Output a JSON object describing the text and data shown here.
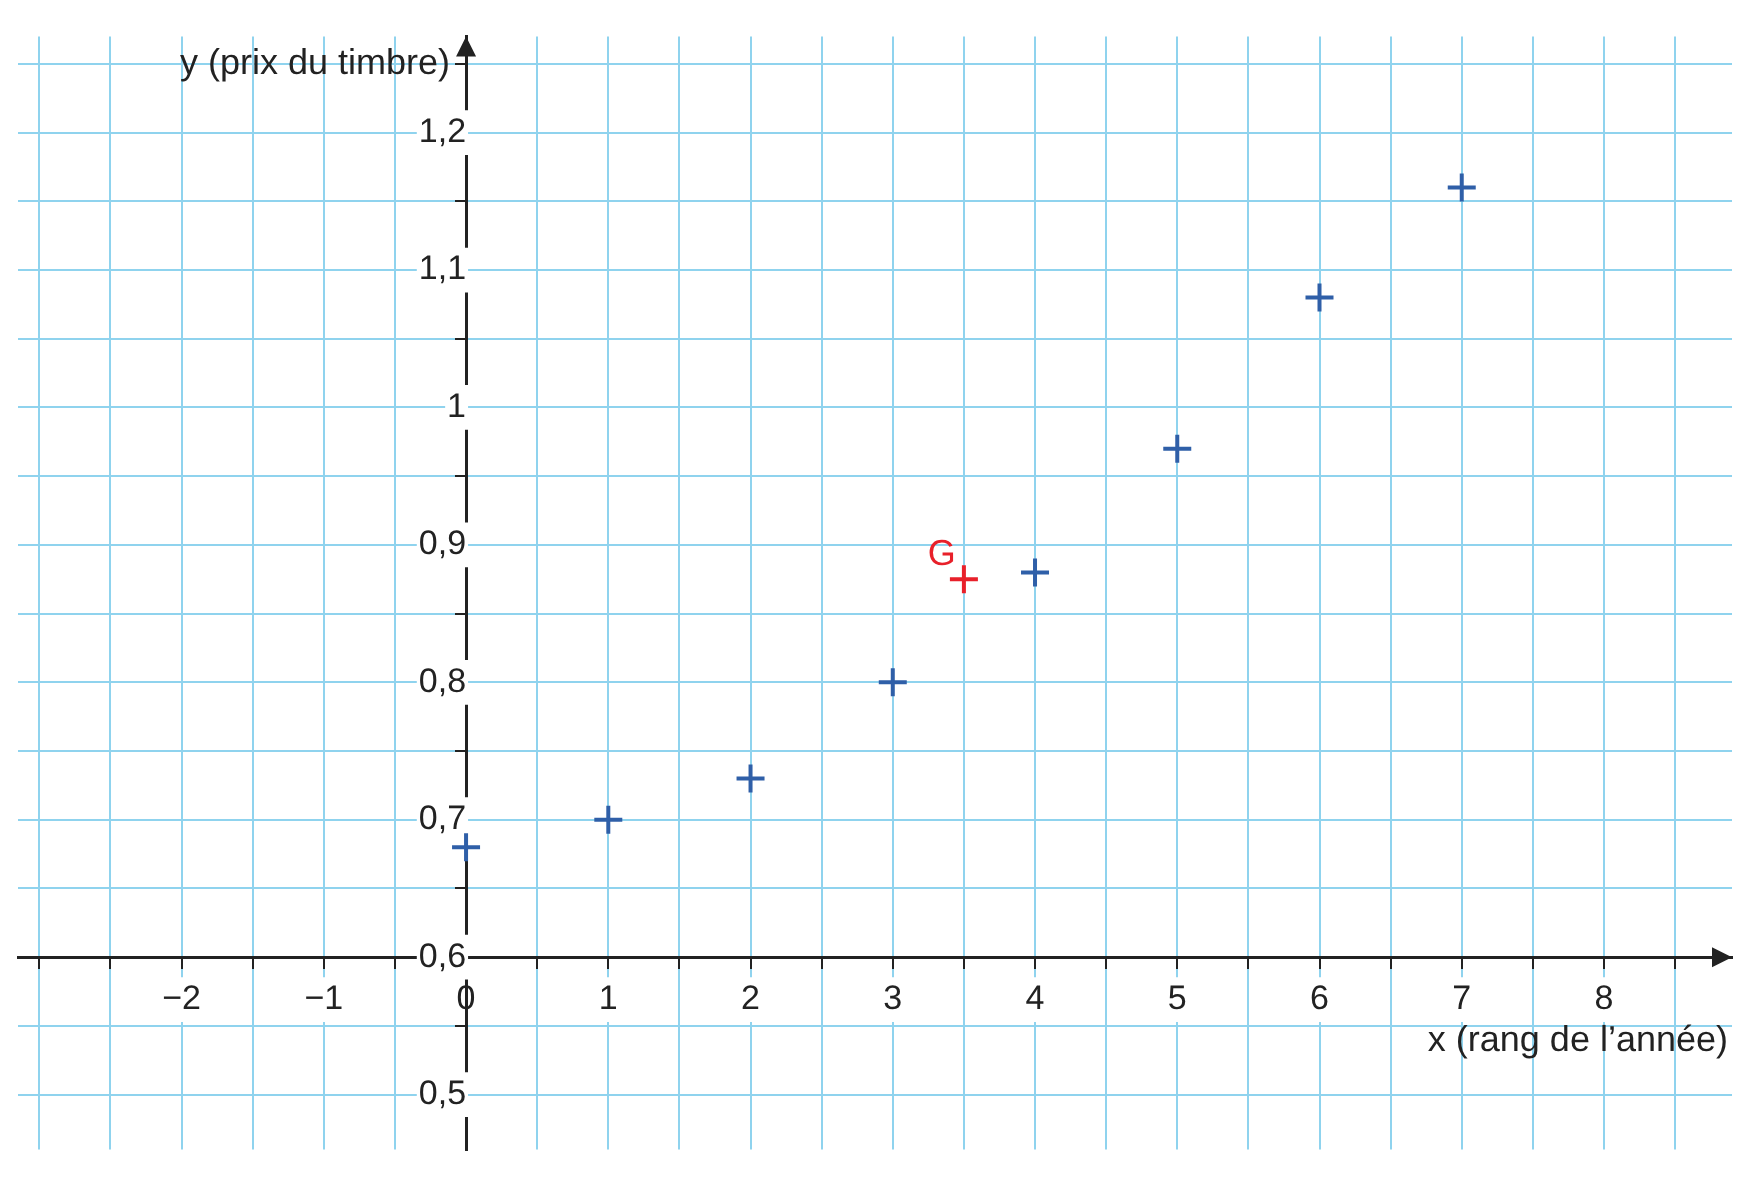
{
  "chart_data": {
    "type": "scatter",
    "xlabel": "x (rang de l’année)",
    "ylabel": "y (prix du timbre)",
    "series": [
      {
        "color": "#2f5fa8",
        "x": [
          0,
          1,
          2,
          3,
          4,
          5,
          6,
          7
        ],
        "values": [
          0.68,
          0.7,
          0.73,
          0.8,
          0.88,
          0.97,
          1.08,
          1.16
        ]
      },
      {
        "name": "G",
        "color": "#e8202a",
        "x": [
          3.5
        ],
        "values": [
          0.875
        ]
      }
    ],
    "xlim": [
      -3.15,
      8.9
    ],
    "xticks": [
      {
        "value": -3,
        "label": null
      },
      {
        "value": -2.5,
        "label": null
      },
      {
        "value": -2,
        "label": "−2"
      },
      {
        "value": -1.5,
        "label": null
      },
      {
        "value": -1,
        "label": "−1"
      },
      {
        "value": -0.5,
        "label": null
      },
      0,
      {
        "value": 0.5,
        "label": null
      },
      1,
      {
        "value": 1.5,
        "label": null
      },
      2,
      {
        "value": 2.5,
        "label": null
      },
      3,
      {
        "value": 3.5,
        "label": null
      },
      4,
      {
        "value": 4.5,
        "label": null
      },
      5,
      {
        "value": 5.5,
        "label": null
      },
      6,
      {
        "value": 6.5,
        "label": null
      },
      7,
      {
        "value": 7.5,
        "label": null
      },
      8,
      {
        "value": 8.5,
        "label": null
      }
    ],
    "ylim": [
      0.46,
      1.27
    ],
    "yticks": [
      {
        "value": 0.5,
        "label": "0,5"
      },
      {
        "value": 0.55,
        "label": null
      },
      {
        "value": 0.6,
        "label": "0,6"
      },
      {
        "value": 0.65,
        "label": null
      },
      {
        "value": 0.7,
        "label": "0,7"
      },
      {
        "value": 0.75,
        "label": null
      },
      {
        "value": 0.8,
        "label": "0,8"
      },
      {
        "value": 0.85,
        "label": null
      },
      {
        "value": 0.9,
        "label": "0,9"
      },
      {
        "value": 0.95,
        "label": null
      },
      1,
      {
        "value": 1.05,
        "label": null
      },
      {
        "value": 1.1,
        "label": "1,1"
      },
      {
        "value": 1.15,
        "label": null
      },
      {
        "value": 1.2,
        "label": "1,2"
      },
      {
        "value": 1.25,
        "label": null
      }
    ],
    "grid": true,
    "legend": false,
    "marker": "cross"
  }
}
